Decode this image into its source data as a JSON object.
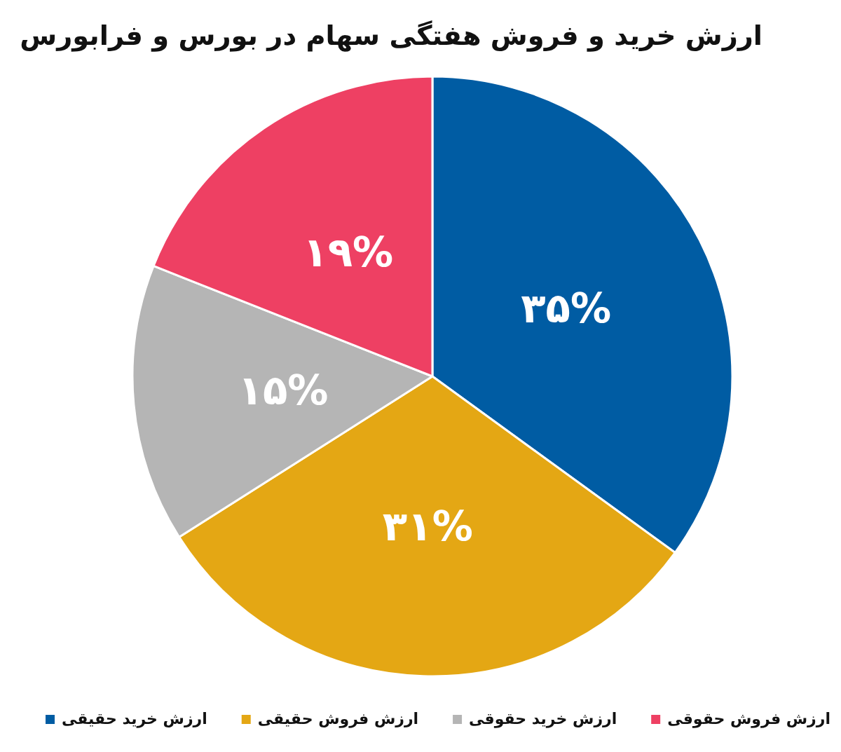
{
  "chart_data": {
    "type": "pie",
    "title": "ارزش خرید و فروش هفتگی سهام در بورس و فرابورس",
    "categories": [
      "ارزش خرید حقیقی",
      "ارزش فروش حقیقی",
      "ارزش خرید حقوقی",
      "ارزش فروش حقوقی"
    ],
    "values": [
      35,
      31,
      15,
      19
    ],
    "colors": [
      "#005ca3",
      "#e4a714",
      "#b5b5b5",
      "#ee4063"
    ],
    "value_labels": [
      "۳۵%",
      "۳۱%",
      "۱۵%",
      "۱۹%"
    ],
    "legend": "bottom"
  }
}
